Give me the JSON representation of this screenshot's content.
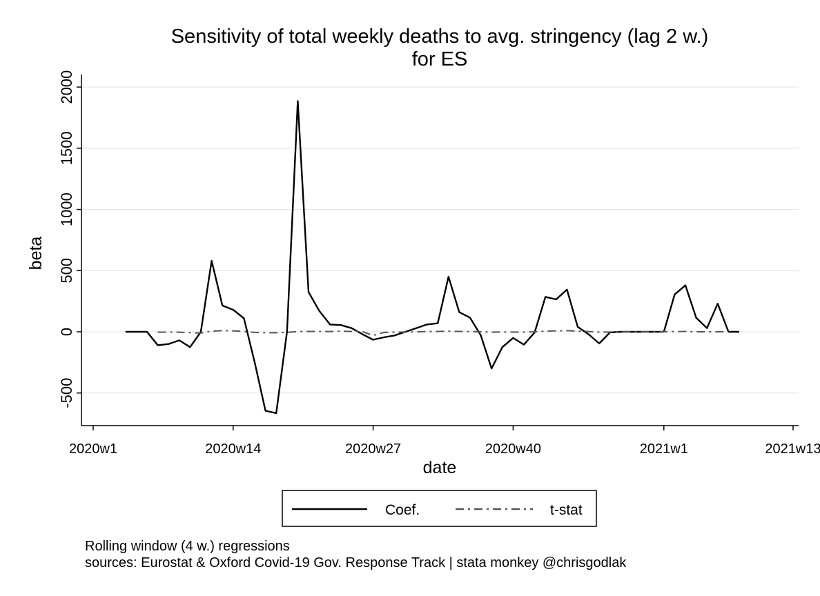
{
  "chart_data": {
    "type": "line",
    "title": "Sensitivity of total weekly deaths to avg. stringency (lag 2 w.)",
    "subtitle": "for ES",
    "xlabel": "date",
    "ylabel": "beta",
    "x_ticks": [
      "2020w1",
      "2020w14",
      "2020w27",
      "2020w40",
      "2021w1",
      "2021w13"
    ],
    "y_ticks": [
      "-500",
      "0",
      "500",
      "1000",
      "1500",
      "2000"
    ],
    "ylim": [
      -700,
      2100
    ],
    "grid": "horizontal",
    "legend_placement": "bottom",
    "x": [
      "2020w4",
      "2020w5",
      "2020w6",
      "2020w7",
      "2020w8",
      "2020w9",
      "2020w10",
      "2020w11",
      "2020w12",
      "2020w13",
      "2020w14",
      "2020w15",
      "2020w16",
      "2020w17",
      "2020w18",
      "2020w19",
      "2020w20",
      "2020w21",
      "2020w22",
      "2020w23",
      "2020w24",
      "2020w25",
      "2020w26",
      "2020w27",
      "2020w28",
      "2020w29",
      "2020w30",
      "2020w31",
      "2020w32",
      "2020w33",
      "2020w34",
      "2020w35",
      "2020w36",
      "2020w37",
      "2020w38",
      "2020w39",
      "2020w40",
      "2020w41",
      "2020w42",
      "2020w43",
      "2020w44",
      "2020w45",
      "2020w46",
      "2020w47",
      "2020w48",
      "2020w49",
      "2020w50",
      "2020w51",
      "2020w52",
      "2020w53",
      "2021w1",
      "2021w2",
      "2021w3",
      "2021w4",
      "2021w5",
      "2021w6",
      "2021w7",
      "2021w8",
      "2021w9"
    ],
    "series": [
      {
        "name": "Coef.",
        "color": "#000000",
        "dash": "solid",
        "values": [
          0,
          0,
          0,
          -110,
          -100,
          -70,
          -125,
          0,
          580,
          215,
          180,
          110,
          -250,
          -645,
          -665,
          0,
          1885,
          325,
          170,
          60,
          55,
          30,
          -20,
          -65,
          -45,
          -30,
          0,
          30,
          60,
          70,
          450,
          160,
          115,
          -30,
          -300,
          -125,
          -50,
          -105,
          -5,
          285,
          265,
          345,
          40,
          -20,
          -95,
          -5,
          0,
          0,
          0,
          0,
          0,
          305,
          380,
          115,
          30,
          230,
          0,
          0,
          null
        ]
      },
      {
        "name": "t-stat",
        "color": "#555555",
        "dash": "dash-dot",
        "values": [
          null,
          null,
          null,
          -3,
          -3,
          -3,
          -8,
          -10,
          5,
          10,
          8,
          3,
          -5,
          -8,
          -8,
          -5,
          2,
          3,
          3,
          2,
          5,
          3,
          2,
          -30,
          -5,
          -3,
          -2,
          0,
          2,
          3,
          5,
          3,
          2,
          0,
          -3,
          -2,
          -2,
          -3,
          0,
          5,
          8,
          10,
          5,
          2,
          -2,
          -2,
          0,
          0,
          0,
          0,
          0,
          2,
          3,
          0,
          0,
          0,
          0,
          null,
          null
        ]
      }
    ]
  },
  "notes": [
    "Rolling window (4 w.) regressions",
    "sources: Eurostat & Oxford Covid-19 Gov. Response Track | stata monkey @chrisgodlak"
  ]
}
